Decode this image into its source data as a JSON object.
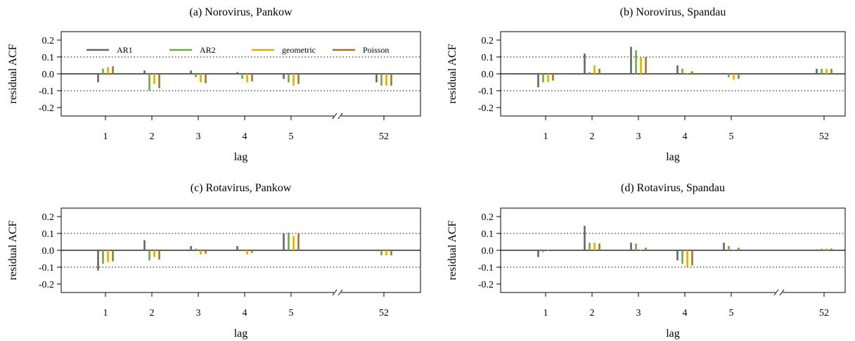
{
  "legend": {
    "entries": [
      {
        "name": "AR1",
        "color": "#666666"
      },
      {
        "name": "AR2",
        "color": "#66b033"
      },
      {
        "name": "geometric",
        "color": "#e6ab02"
      },
      {
        "name": "Poisson",
        "color": "#a6761d"
      }
    ]
  },
  "chart_data": [
    {
      "type": "bar",
      "title": "(a) Norovirus, Pankow",
      "xlabel": "lag",
      "ylabel": "residual ACF",
      "ylim": [
        -0.2,
        0.2
      ],
      "yticks": [
        "0.2",
        "0.1",
        "0.0",
        "-0.1",
        "-0.2"
      ],
      "ytick_values": [
        0.2,
        0.1,
        0.0,
        -0.1,
        -0.2
      ],
      "reference_lines": [
        0.1,
        -0.1
      ],
      "categories": [
        "1",
        "2",
        "3",
        "4",
        "5",
        "52"
      ],
      "axis_break_between": [
        "5",
        "52"
      ],
      "show_legend": true,
      "series": [
        {
          "name": "AR1",
          "values": [
            -0.05,
            0.02,
            0.02,
            0.01,
            -0.03,
            -0.05
          ]
        },
        {
          "name": "AR2",
          "values": [
            0.03,
            -0.1,
            -0.02,
            -0.03,
            -0.05,
            -0.07
          ]
        },
        {
          "name": "geometric",
          "values": [
            0.04,
            -0.06,
            -0.05,
            -0.05,
            -0.07,
            -0.07
          ]
        },
        {
          "name": "Poisson",
          "values": [
            0.045,
            -0.085,
            -0.055,
            -0.045,
            -0.06,
            -0.07
          ]
        }
      ]
    },
    {
      "type": "bar",
      "title": "(b) Norovirus, Spandau",
      "xlabel": "lag",
      "ylabel": "residual ACF",
      "ylim": [
        -0.2,
        0.2
      ],
      "yticks": [
        "0.2",
        "0.1",
        "0.0",
        "-0.1",
        "-0.2"
      ],
      "ytick_values": [
        0.2,
        0.1,
        0.0,
        -0.1,
        -0.2
      ],
      "reference_lines": [
        0.1,
        -0.1
      ],
      "categories": [
        "1",
        "2",
        "3",
        "4",
        "5",
        "52"
      ],
      "axis_break_between": [
        "5",
        "52"
      ],
      "show_legend": false,
      "series": [
        {
          "name": "AR1",
          "values": [
            -0.08,
            0.12,
            0.16,
            0.05,
            0.005,
            0.03
          ]
        },
        {
          "name": "AR2",
          "values": [
            -0.05,
            0.01,
            0.14,
            0.03,
            -0.02,
            0.03
          ]
        },
        {
          "name": "geometric",
          "values": [
            -0.05,
            0.05,
            0.1,
            0.005,
            -0.035,
            0.03
          ]
        },
        {
          "name": "Poisson",
          "values": [
            -0.04,
            0.03,
            0.1,
            0.015,
            -0.03,
            0.03
          ]
        }
      ]
    },
    {
      "type": "bar",
      "title": "(c) Rotavirus, Pankow",
      "xlabel": "lag",
      "ylabel": "residual ACF",
      "ylim": [
        -0.2,
        0.2
      ],
      "yticks": [
        "0.2",
        "0.1",
        "0.0",
        "-0.1",
        "-0.2"
      ],
      "ytick_values": [
        0.2,
        0.1,
        0.0,
        -0.1,
        -0.2
      ],
      "reference_lines": [
        0.1,
        -0.1
      ],
      "categories": [
        "1",
        "2",
        "3",
        "4",
        "5",
        "52"
      ],
      "axis_break_between": [
        "5",
        "52"
      ],
      "show_legend": false,
      "series": [
        {
          "name": "AR1",
          "values": [
            -0.12,
            0.06,
            0.025,
            0.025,
            0.1,
            -0.005
          ]
        },
        {
          "name": "AR2",
          "values": [
            -0.08,
            -0.06,
            0.01,
            -0.005,
            0.105,
            -0.03
          ]
        },
        {
          "name": "geometric",
          "values": [
            -0.07,
            -0.04,
            -0.025,
            -0.025,
            0.085,
            -0.03
          ]
        },
        {
          "name": "Poisson",
          "values": [
            -0.065,
            -0.055,
            -0.02,
            -0.015,
            0.1,
            -0.03
          ]
        }
      ]
    },
    {
      "type": "bar",
      "title": "(d) Rotavirus, Spandau",
      "xlabel": "lag",
      "ylabel": "residual ACF",
      "ylim": [
        -0.2,
        0.2
      ],
      "yticks": [
        "0.2",
        "0.1",
        "0.0",
        "-0.1",
        "-0.2"
      ],
      "ytick_values": [
        0.2,
        0.1,
        0.0,
        -0.1,
        -0.2
      ],
      "reference_lines": [
        0.1,
        -0.1
      ],
      "categories": [
        "1",
        "2",
        "3",
        "4",
        "5",
        "52"
      ],
      "axis_break_between": [
        "5",
        "52"
      ],
      "show_legend": false,
      "series": [
        {
          "name": "AR1",
          "values": [
            -0.04,
            0.145,
            0.045,
            -0.06,
            0.045,
            0.005
          ]
        },
        {
          "name": "AR2",
          "values": [
            -0.01,
            0.045,
            0.04,
            -0.08,
            0.025,
            0.01
          ]
        },
        {
          "name": "geometric",
          "values": [
            0.005,
            0.045,
            0.005,
            -0.1,
            0.005,
            0.01
          ]
        },
        {
          "name": "Poisson",
          "values": [
            0.005,
            0.04,
            0.015,
            -0.09,
            0.015,
            0.01
          ]
        }
      ]
    }
  ]
}
